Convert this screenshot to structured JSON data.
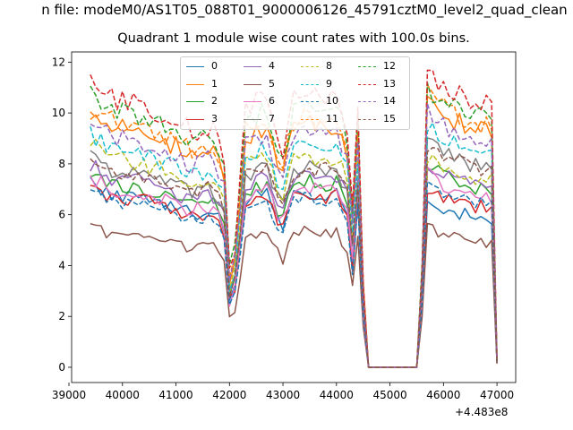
{
  "figure": {
    "suptitle": "n file: modeM0/AS1T05_088T01_9000006126_45791cztM0_level2_quad_clean",
    "offset_label": "+4.483e8"
  },
  "chart_data": {
    "type": "line",
    "title": "Quadrant 1 module wise count rates with 100.0s bins.",
    "xlabel": "",
    "ylabel": "",
    "x_offset": 448300000,
    "xlim": [
      39050,
      47350
    ],
    "ylim": [
      -0.6,
      12.4
    ],
    "xticks": [
      39000,
      40000,
      41000,
      42000,
      43000,
      44000,
      45000,
      46000,
      47000
    ],
    "xtick_labels": [
      "39000",
      "40000",
      "41000",
      "42000",
      "43000",
      "44000",
      "45000",
      "46000",
      "47000"
    ],
    "yticks": [
      0,
      2,
      4,
      6,
      8,
      10,
      12
    ],
    "ytick_labels": [
      "0",
      "2",
      "4",
      "6",
      "8",
      "10",
      "12"
    ],
    "grid": false,
    "legend_position": "top-center, 4 columns",
    "x_range_segments": [
      [
        39400,
        44550
      ],
      [
        45550,
        47000
      ]
    ],
    "x_step": 100,
    "zero_gap": [
      44600,
      45500
    ],
    "profile": {
      "xs": [
        39400,
        39800,
        40200,
        40600,
        41000,
        41300,
        41500,
        41700,
        41900,
        42000,
        42100,
        42300,
        42700,
        42900,
        43000,
        43200,
        43400,
        43800,
        44000,
        44200,
        44300,
        44400,
        44550,
        45550,
        45700,
        46000,
        46500,
        46900,
        47000
      ],
      "fs": [
        1.0,
        0.93,
        0.92,
        0.89,
        0.86,
        0.82,
        0.84,
        0.84,
        0.74,
        0.36,
        0.42,
        0.9,
        0.94,
        0.8,
        0.76,
        0.93,
        0.95,
        0.93,
        0.94,
        0.84,
        0.55,
        0.9,
        0.0,
        0.0,
        1.0,
        0.95,
        0.9,
        0.88,
        0.03
      ]
    },
    "series": [
      {
        "name": "0",
        "color": "#1f77b4",
        "dash": "solid",
        "level": 7.3,
        "level2": 6.6
      },
      {
        "name": "1",
        "color": "#ff7f0e",
        "dash": "solid",
        "level": 10.1,
        "level2": 10.5
      },
      {
        "name": "2",
        "color": "#2ca02c",
        "dash": "solid",
        "level": 7.7,
        "level2": 7.9
      },
      {
        "name": "3",
        "color": "#d62728",
        "dash": "solid",
        "level": 7.2,
        "level2": 7.1
      },
      {
        "name": "4",
        "color": "#9467bd",
        "dash": "solid",
        "level": 8.0,
        "level2": 8.0
      },
      {
        "name": "5",
        "color": "#8c564b",
        "dash": "solid",
        "level": 5.6,
        "level2": 5.5
      },
      {
        "name": "6",
        "color": "#e377c2",
        "dash": "solid",
        "level": 7.5,
        "level2": 7.6
      },
      {
        "name": "7",
        "color": "#7f7f7f",
        "dash": "solid",
        "level": 8.3,
        "level2": 8.9
      },
      {
        "name": "8",
        "color": "#bcbd22",
        "dash": "dashed",
        "level": 8.8,
        "level2": 8.3
      },
      {
        "name": "9",
        "color": "#17becf",
        "dash": "dashed",
        "level": 9.2,
        "level2": 9.4
      },
      {
        "name": "10",
        "color": "#1f77b4",
        "dash": "dashed",
        "level": 7.0,
        "level2": 7.3
      },
      {
        "name": "11",
        "color": "#ff7f0e",
        "dash": "dashed",
        "level": 10.4,
        "level2": 10.8
      },
      {
        "name": "12",
        "color": "#2ca02c",
        "dash": "dashed",
        "level": 10.8,
        "level2": 11.0
      },
      {
        "name": "13",
        "color": "#d62728",
        "dash": "dashed",
        "level": 11.3,
        "level2": 11.6
      },
      {
        "name": "14",
        "color": "#9467bd",
        "dash": "dashed",
        "level": 9.7,
        "level2": 10.0
      },
      {
        "name": "15",
        "color": "#8c564b",
        "dash": "dashed",
        "level": 8.3,
        "level2": 8.7
      }
    ]
  }
}
